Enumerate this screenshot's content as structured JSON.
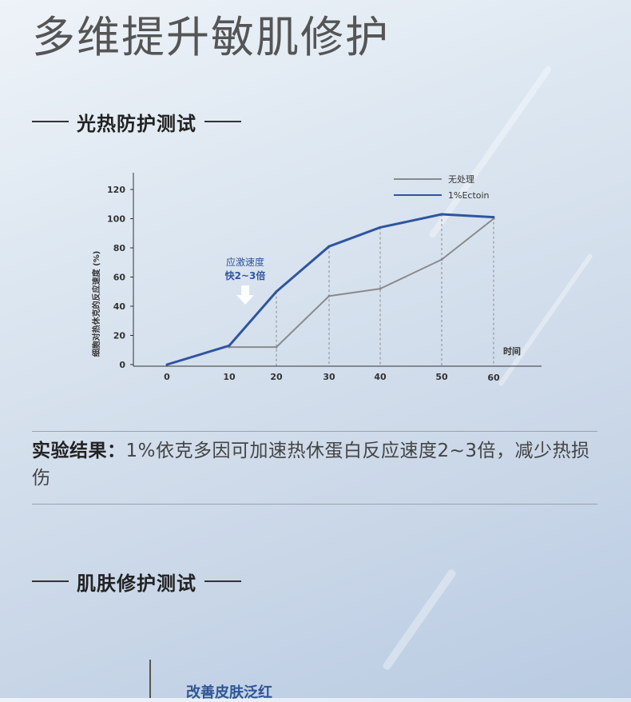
{
  "hero": {
    "title": "多维提升敏肌修护"
  },
  "section1": {
    "title": "光热防护测试"
  },
  "section2": {
    "title": "肌肤修护测试"
  },
  "result": {
    "label": "实验结果：",
    "text": "1%依克多因可加速热休蛋白反应速度2~3倍，减少热损伤"
  },
  "bottom": {
    "label": "改善皮肤泛红"
  },
  "colors": {
    "untreated": "#8a8a8a",
    "ectoin": "#2f55a0",
    "annotation": "#2f55a0"
  },
  "chart_data": {
    "type": "line",
    "ylabel": "细胞对热休克的反应速度 (%)",
    "xlabel": "时间",
    "ylim": [
      0,
      120
    ],
    "yticks": [
      0,
      20,
      40,
      60,
      80,
      100,
      120
    ],
    "xtick_labels": [
      "0",
      "10",
      "20",
      "30",
      "40",
      "50",
      "60"
    ],
    "grid": "dashed vertical guides at 20–60",
    "legend": "top-right",
    "series": [
      {
        "name": "无处理",
        "x": [
          10,
          20,
          30,
          40,
          50,
          60
        ],
        "y": [
          12,
          12,
          47,
          52,
          72,
          100
        ]
      },
      {
        "name": "1%Ectoin",
        "x": [
          0,
          10,
          20,
          30,
          40,
          50,
          60
        ],
        "y": [
          0,
          13,
          50,
          81,
          94,
          103,
          101
        ]
      }
    ],
    "annotation": {
      "line1": "应激速度",
      "line2": "快2~3倍"
    }
  }
}
